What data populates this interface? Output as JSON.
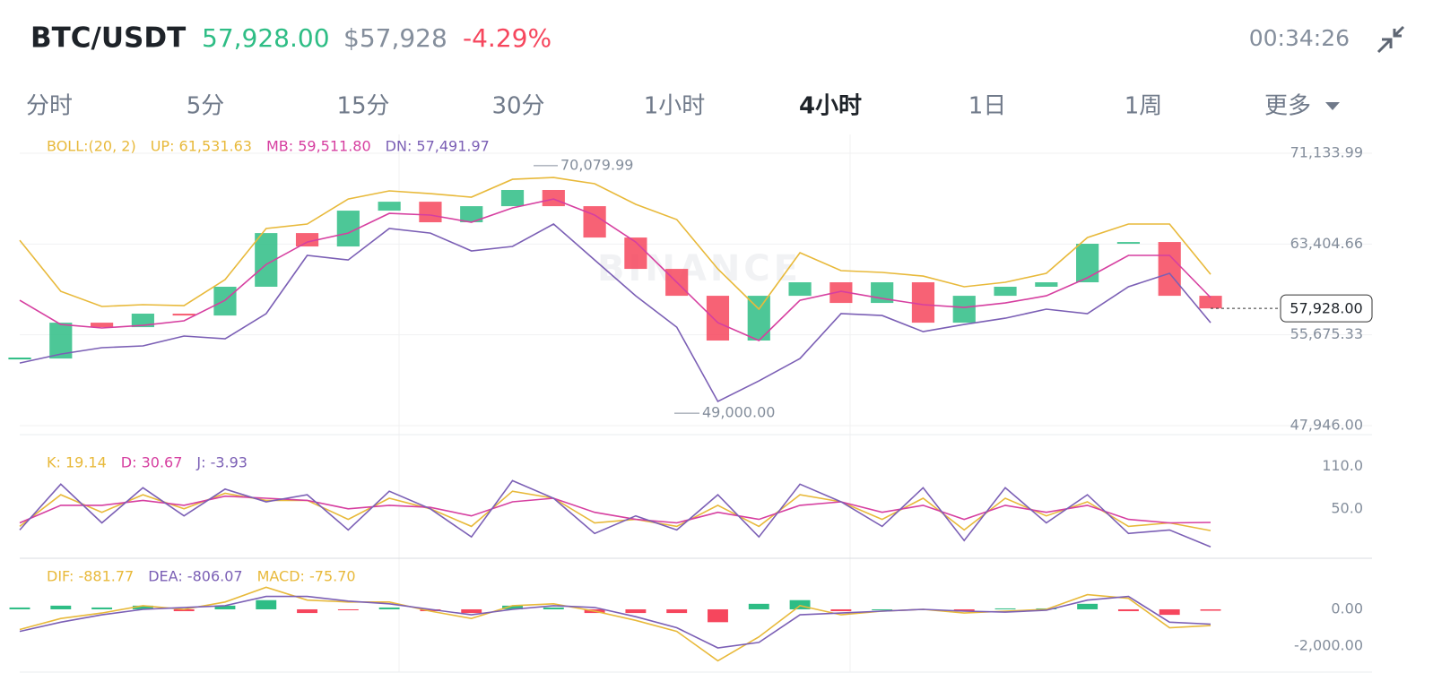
{
  "header": {
    "symbol": "BTC/USDT",
    "price": "57,928.00",
    "usd_price": "$57,928",
    "change": "-4.29%",
    "time": "00:34:26"
  },
  "tabs": {
    "items": [
      "分时",
      "5分",
      "15分",
      "30分",
      "1小时",
      "4小时",
      "1日",
      "1周",
      "更多"
    ],
    "active": 5
  },
  "watermark": "BINANCE",
  "chart_data": [
    {
      "type": "candlestick",
      "legend_title": "BOLL:(20, 2)",
      "candles": {
        "close": [
          53660,
          56710,
          56330,
          57480,
          57320,
          59770,
          64340,
          63200,
          66250,
          67010,
          65260,
          66630,
          68010,
          66630,
          63960,
          61290,
          59000,
          55190,
          59000,
          60150,
          58390,
          60150,
          56710,
          59000,
          59770,
          60150,
          63430,
          63580,
          59000,
          57928
        ],
        "up_color": "#2ebd85",
        "down_color": "#f6465d"
      },
      "series": [
        {
          "name": "UP: 61,531.63",
          "color": "#e8b93a",
          "values": [
            63730,
            59380,
            58090,
            58240,
            58160,
            60380,
            64730,
            65110,
            67240,
            67930,
            67700,
            67400,
            68920,
            69070,
            68540,
            66790,
            65490,
            61290,
            57860,
            62670,
            61140,
            60990,
            60680,
            59770,
            60150,
            60910,
            63960,
            65110,
            65110,
            60830
          ]
        },
        {
          "name": "MB: 59,511.80",
          "color": "#d63fa0",
          "values": [
            58620,
            56560,
            56260,
            56480,
            56870,
            58620,
            61670,
            63580,
            64340,
            66020,
            65870,
            65260,
            66480,
            67240,
            65870,
            63580,
            60150,
            56710,
            55190,
            58620,
            59380,
            58770,
            58240,
            58010,
            58390,
            59000,
            60530,
            62440,
            62440,
            58850
          ]
        },
        {
          "name": "DN: 57,491.97",
          "color": "#7b5fb5",
          "values": [
            53280,
            54040,
            54580,
            54730,
            55570,
            55340,
            57480,
            62440,
            62050,
            64730,
            64340,
            62820,
            63200,
            65110,
            62050,
            59000,
            56330,
            50000,
            51750,
            53660,
            57480,
            57320,
            55950,
            56560,
            57090,
            57860,
            57480,
            59770,
            60910,
            56710
          ]
        }
      ],
      "ylim": [
        47180,
        72740
      ],
      "yticks": [
        {
          "value": 71133.99,
          "label": "71,133.99"
        },
        {
          "value": 63404.66,
          "label": "63,404.66"
        },
        {
          "value": 55675.33,
          "label": "55,675.33"
        },
        {
          "value": 47946,
          "label": "47,946.00"
        }
      ],
      "grid": true,
      "max_annotation": {
        "value": 70079.99,
        "label": "70,079.99"
      },
      "min_annotation": {
        "value": 49000,
        "label": "49,000.00"
      },
      "last_price": {
        "value": 57928,
        "label": "57,928.00"
      }
    },
    {
      "type": "line",
      "series": [
        {
          "name": "K: 19.14",
          "color": "#e8b93a",
          "values": [
            25,
            70,
            45,
            70,
            50,
            72,
            62,
            62,
            35,
            65,
            50,
            25,
            75,
            65,
            30,
            35,
            25,
            55,
            25,
            70,
            60,
            35,
            65,
            20,
            65,
            40,
            60,
            25,
            30,
            19.14
          ]
        },
        {
          "name": "D: 30.67",
          "color": "#d63fa0",
          "values": [
            30,
            55,
            55,
            62,
            55,
            68,
            65,
            62,
            50,
            55,
            52,
            40,
            60,
            65,
            45,
            35,
            30,
            45,
            35,
            55,
            60,
            45,
            55,
            35,
            55,
            45,
            55,
            35,
            30,
            30.67
          ]
        },
        {
          "name": "J: -3.93",
          "color": "#7b5fb5",
          "values": [
            20,
            85,
            30,
            80,
            40,
            78,
            60,
            70,
            20,
            75,
            50,
            10,
            90,
            65,
            15,
            40,
            20,
            70,
            10,
            85,
            60,
            25,
            80,
            5,
            80,
            30,
            70,
            15,
            20,
            -3.93
          ]
        }
      ],
      "ylim": [
        -19,
        130
      ],
      "yticks": [
        {
          "value": 110,
          "label": "110.0"
        },
        {
          "value": 50,
          "label": "50.0"
        }
      ]
    },
    {
      "type": "macd",
      "series": [
        {
          "name": "DIF: -881.77",
          "color": "#e8b93a",
          "values": [
            -1100,
            -500,
            -200,
            200,
            0,
            400,
            1200,
            500,
            400,
            400,
            -100,
            -500,
            200,
            300,
            -100,
            -600,
            -1200,
            -2800,
            -1500,
            200,
            -300,
            -100,
            0,
            -200,
            -100,
            0,
            800,
            600,
            -1000,
            -881.77
          ]
        },
        {
          "name": "DEA: -806.07",
          "color": "#7b5fb5",
          "values": [
            -1200,
            -700,
            -300,
            0,
            100,
            200,
            700,
            700,
            450,
            300,
            0,
            -300,
            0,
            200,
            100,
            -400,
            -1000,
            -2100,
            -1800,
            -300,
            -200,
            -100,
            0,
            -100,
            -150,
            -50,
            500,
            700,
            -700,
            -806.07
          ]
        }
      ],
      "histogram": {
        "name": "MACD: -75.70",
        "label_color": "#e8b93a",
        "up_color": "#2ebd85",
        "down_color": "#f6465d",
        "values": [
          100,
          200,
          100,
          200,
          -100,
          200,
          500,
          -200,
          -50,
          100,
          -100,
          -200,
          200,
          100,
          -200,
          -200,
          -200,
          -700,
          300,
          500,
          -100,
          0,
          0,
          -100,
          50,
          50,
          300,
          -100,
          -300,
          -75.7
        ]
      },
      "ylim": [
        -3415,
        2535
      ],
      "yticks": [
        {
          "value": 0,
          "label": "0.00"
        },
        {
          "value": -2000,
          "label": "-2,000.00"
        }
      ]
    }
  ]
}
